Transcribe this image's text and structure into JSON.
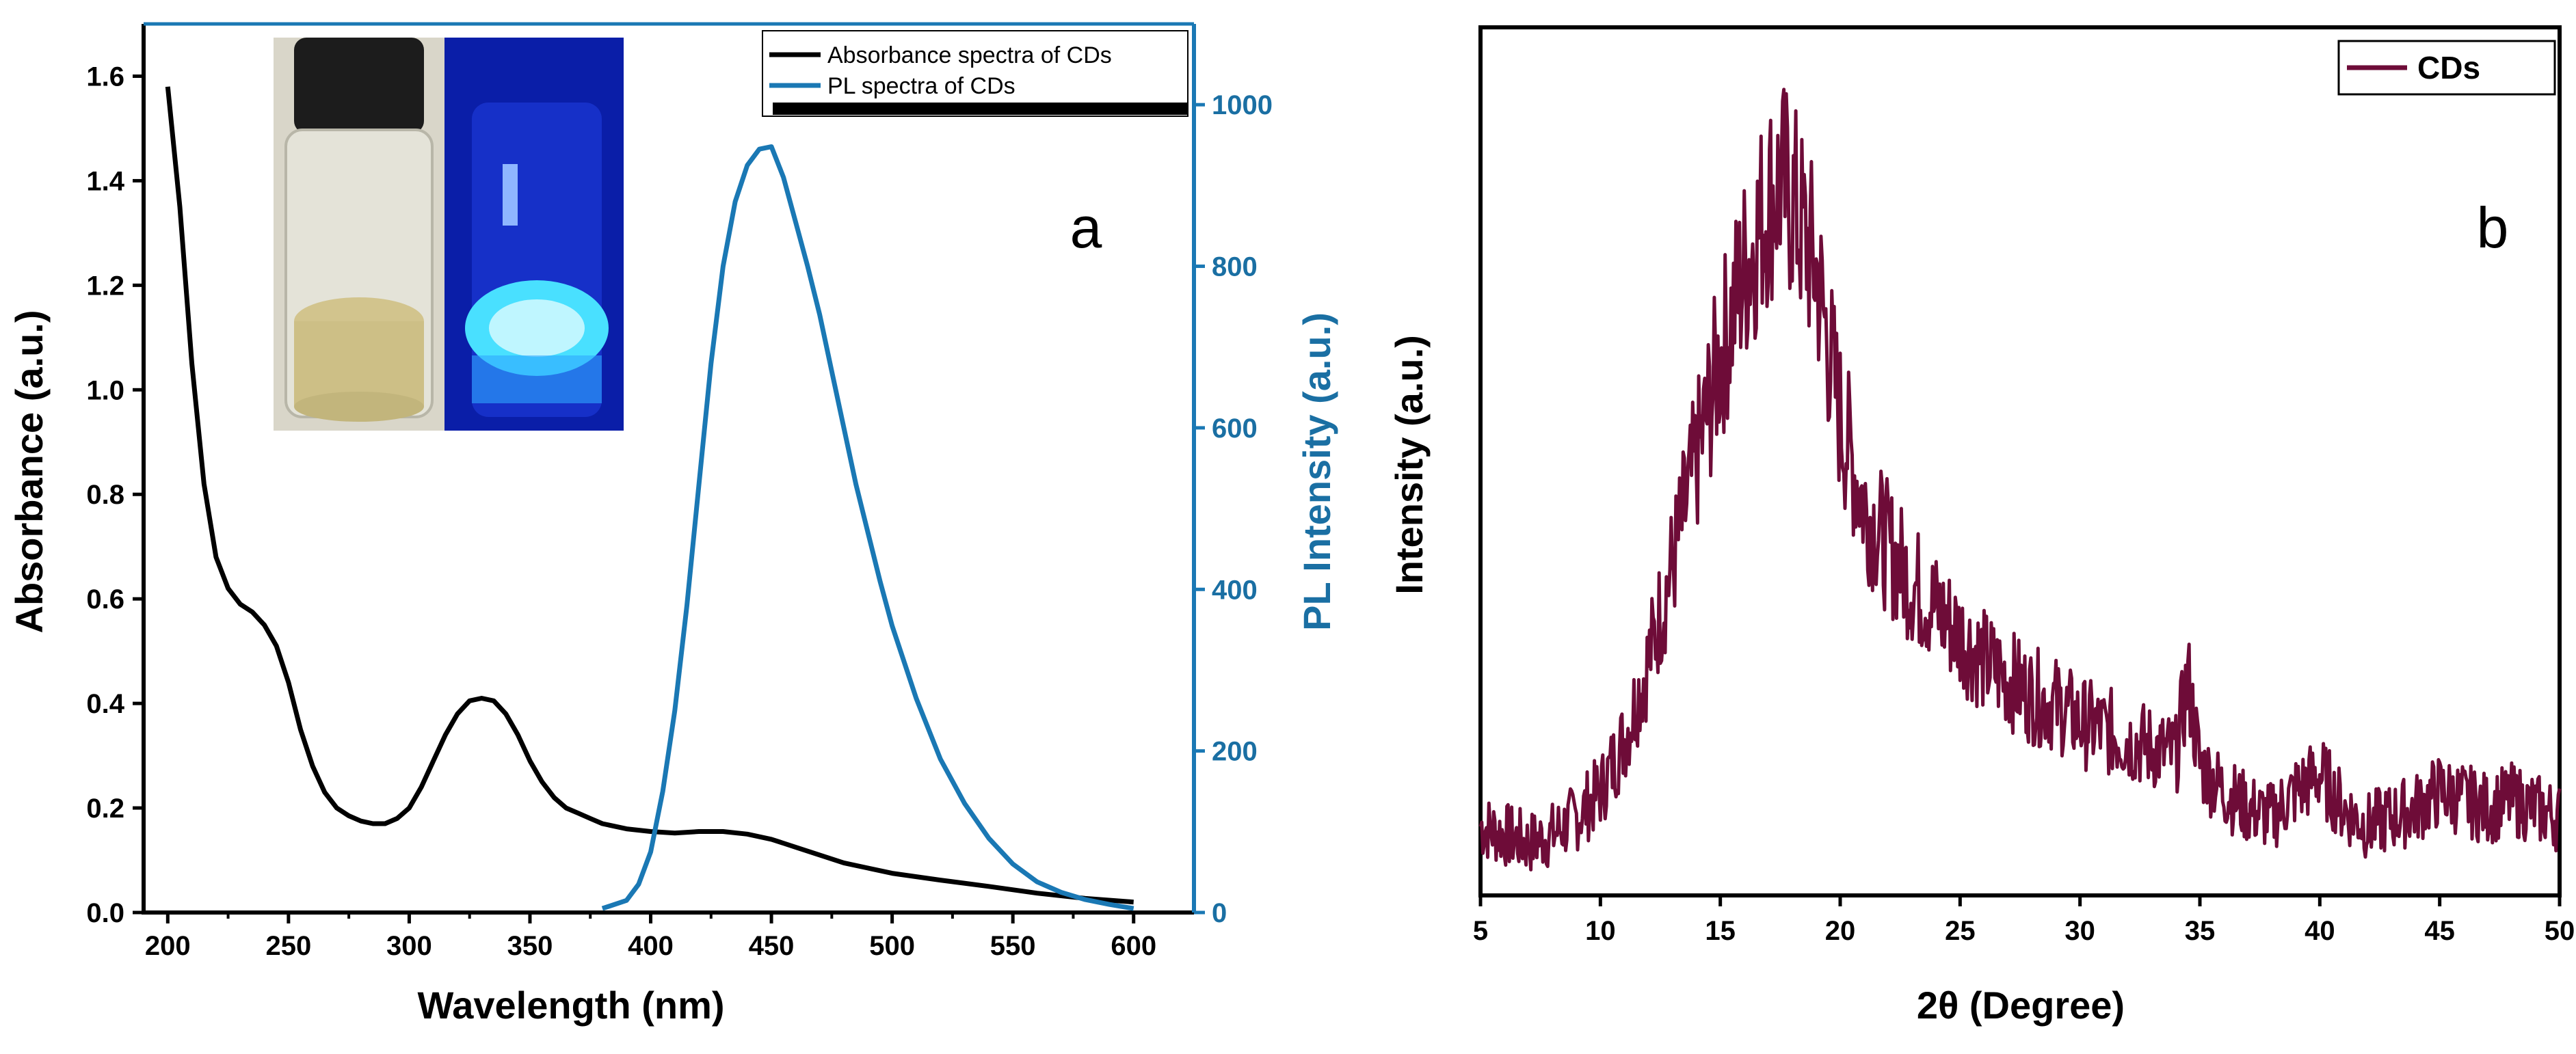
{
  "chart_data": [
    {
      "type": "line",
      "panel_label": "a",
      "xlabel": "Wavelength (nm)",
      "ylabel": "Absorbance (a.u.)",
      "ylabel_right": "PL Intensity (a.u.)",
      "xlim": [
        190,
        625
      ],
      "ylim": [
        0,
        1.7
      ],
      "ylim_right": [
        0,
        1100
      ],
      "x_ticks": [
        200,
        250,
        300,
        350,
        400,
        450,
        500,
        550,
        600
      ],
      "y_ticks": [
        "0.0",
        "0.2",
        "0.4",
        "0.6",
        "0.8",
        "1.0",
        "1.2",
        "1.4",
        "1.6"
      ],
      "y_right_ticks": [
        "0",
        "200",
        "400",
        "600",
        "800",
        "1000"
      ],
      "legend": "top-right",
      "inset": "photographs of CDs vial under daylight (left) and UV light (right)",
      "series": [
        {
          "name": "Absorbance spectra of CDs",
          "axis": "left",
          "color": "#000000",
          "x": [
            200,
            205,
            210,
            215,
            220,
            225,
            230,
            235,
            240,
            245,
            250,
            255,
            260,
            265,
            270,
            275,
            280,
            285,
            290,
            295,
            300,
            305,
            310,
            315,
            320,
            325,
            330,
            335,
            340,
            345,
            350,
            355,
            360,
            365,
            370,
            375,
            380,
            390,
            400,
            410,
            420,
            430,
            440,
            450,
            460,
            470,
            480,
            490,
            500,
            520,
            540,
            560,
            580,
            600
          ],
          "y": [
            1.58,
            1.35,
            1.05,
            0.82,
            0.68,
            0.62,
            0.59,
            0.575,
            0.55,
            0.51,
            0.44,
            0.35,
            0.28,
            0.23,
            0.2,
            0.185,
            0.175,
            0.17,
            0.17,
            0.18,
            0.2,
            0.24,
            0.29,
            0.34,
            0.38,
            0.405,
            0.41,
            0.405,
            0.38,
            0.34,
            0.29,
            0.25,
            0.22,
            0.2,
            0.19,
            0.18,
            0.17,
            0.16,
            0.155,
            0.152,
            0.155,
            0.155,
            0.15,
            0.14,
            0.125,
            0.11,
            0.095,
            0.085,
            0.075,
            0.062,
            0.05,
            0.037,
            0.027,
            0.02
          ]
        },
        {
          "name": "PL spectra of CDs",
          "axis": "right",
          "color": "#1a78b4",
          "x": [
            380,
            390,
            395,
            400,
            405,
            410,
            415,
            420,
            425,
            430,
            435,
            440,
            445,
            450,
            455,
            460,
            465,
            470,
            475,
            480,
            485,
            490,
            495,
            500,
            510,
            520,
            530,
            540,
            550,
            560,
            570,
            580,
            590,
            600
          ],
          "y": [
            5,
            15,
            35,
            75,
            150,
            250,
            380,
            530,
            680,
            800,
            880,
            925,
            945,
            948,
            910,
            855,
            800,
            740,
            670,
            600,
            530,
            470,
            410,
            355,
            265,
            190,
            135,
            92,
            60,
            38,
            25,
            16,
            10,
            5
          ]
        }
      ]
    },
    {
      "type": "line",
      "panel_label": "b",
      "xlabel": "2θ (Degree)",
      "ylabel": "Intensity (a.u.)",
      "xlim": [
        5,
        50
      ],
      "x_ticks": [
        5,
        10,
        15,
        20,
        25,
        30,
        35,
        40,
        45,
        50
      ],
      "y_ticks_shown": false,
      "legend": "top-right",
      "series": [
        {
          "name": "CDs",
          "color": "#6e0c38",
          "x": [
            5,
            6,
            7,
            8,
            9,
            10,
            11,
            12,
            13,
            14,
            15,
            16,
            17,
            17.5,
            18,
            19,
            20,
            21,
            22,
            23,
            24,
            25,
            26,
            27,
            28,
            29,
            30,
            31,
            32,
            33,
            34,
            34.5,
            35,
            36,
            37,
            38,
            39,
            40,
            41,
            42,
            43,
            44,
            45,
            46,
            47,
            48,
            49,
            50
          ],
          "y": [
            0.08,
            0.07,
            0.06,
            0.07,
            0.09,
            0.12,
            0.18,
            0.27,
            0.38,
            0.5,
            0.62,
            0.72,
            0.8,
            0.82,
            0.8,
            0.72,
            0.55,
            0.45,
            0.4,
            0.36,
            0.33,
            0.3,
            0.27,
            0.25,
            0.23,
            0.22,
            0.2,
            0.19,
            0.18,
            0.17,
            0.16,
            0.25,
            0.15,
            0.12,
            0.1,
            0.09,
            0.12,
            0.14,
            0.1,
            0.08,
            0.09,
            0.1,
            0.12,
            0.11,
            0.1,
            0.11,
            0.1,
            0.09
          ]
        }
      ]
    }
  ]
}
